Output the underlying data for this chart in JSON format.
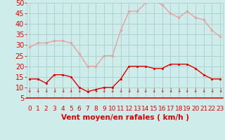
{
  "hours": [
    0,
    1,
    2,
    3,
    4,
    5,
    6,
    7,
    8,
    9,
    10,
    11,
    12,
    13,
    14,
    15,
    16,
    17,
    18,
    19,
    20,
    21,
    22,
    23
  ],
  "vent_moyen": [
    14,
    14,
    12,
    16,
    16,
    15,
    10,
    8,
    9,
    10,
    10,
    14,
    20,
    20,
    20,
    19,
    19,
    21,
    21,
    21,
    19,
    16,
    14,
    14
  ],
  "rafales": [
    29,
    31,
    31,
    32,
    32,
    31,
    26,
    20,
    20,
    25,
    25,
    37,
    46,
    46,
    50,
    51,
    49,
    45,
    43,
    46,
    43,
    42,
    37,
    34
  ],
  "xlabel": "Vent moyen/en rafales ( km/h )",
  "ylim_min": 5,
  "ylim_max": 50,
  "yticks": [
    5,
    10,
    15,
    20,
    25,
    30,
    35,
    40,
    45,
    50
  ],
  "bg_color": "#ceecea",
  "grid_color": "#aad4d0",
  "line_color_moyen": "#dd0000",
  "line_color_rafales": "#e8a0a0",
  "marker_color_moyen": "#dd0000",
  "marker_color_rafales": "#e8a0a0",
  "tick_color": "#dd0000",
  "label_color": "#dd0000",
  "xlabel_fontsize": 7.5,
  "ytick_fontsize": 7,
  "xtick_fontsize": 6.5
}
